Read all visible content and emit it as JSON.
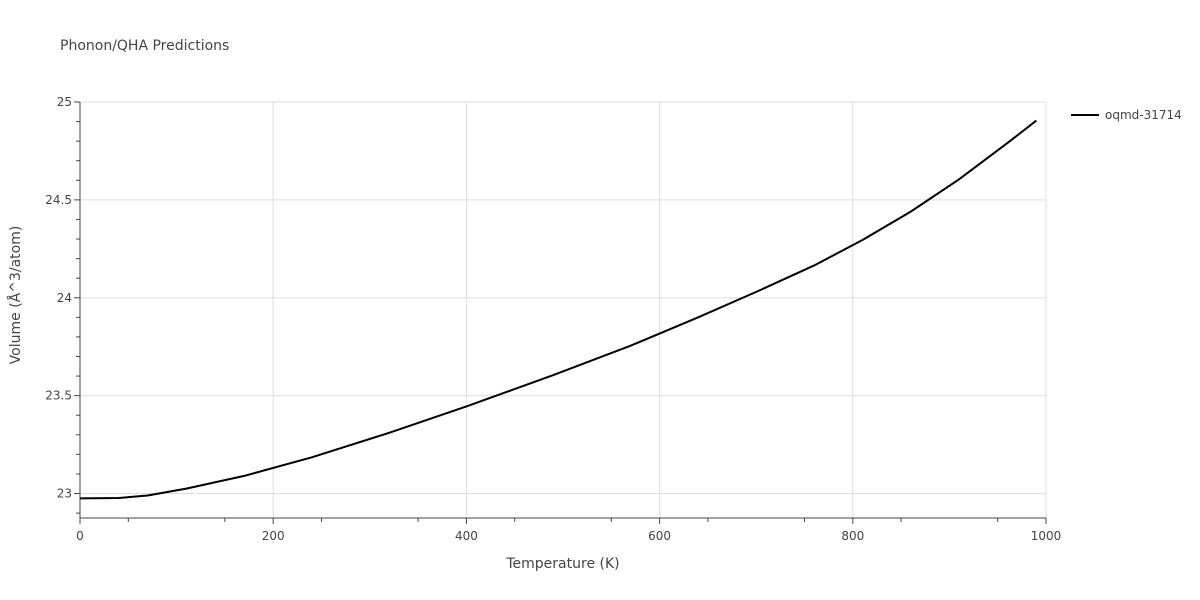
{
  "chart_data": {
    "type": "line",
    "title": "Phonon/QHA Predictions",
    "xlabel": "Temperature (K)",
    "ylabel": "Volume (Å^3/atom)",
    "xlim": [
      0,
      1000
    ],
    "ylim": [
      22.875,
      25
    ],
    "xticks": [
      0,
      200,
      400,
      600,
      800,
      1000
    ],
    "yticks": [
      23,
      23.5,
      24,
      24.5,
      25
    ],
    "grid": true,
    "legend": "top-right, outside plot",
    "series": [
      {
        "name": "oqmd-31714",
        "color": "#000000",
        "x": [
          0,
          40,
          70,
          110,
          170,
          240,
          320,
          400,
          490,
          570,
          640,
          700,
          760,
          810,
          860,
          910,
          960,
          990
        ],
        "y": [
          22.975,
          22.977,
          22.99,
          23.025,
          23.09,
          23.185,
          23.31,
          23.445,
          23.605,
          23.755,
          23.9,
          24.03,
          24.165,
          24.295,
          24.44,
          24.605,
          24.79,
          24.905
        ]
      }
    ]
  }
}
